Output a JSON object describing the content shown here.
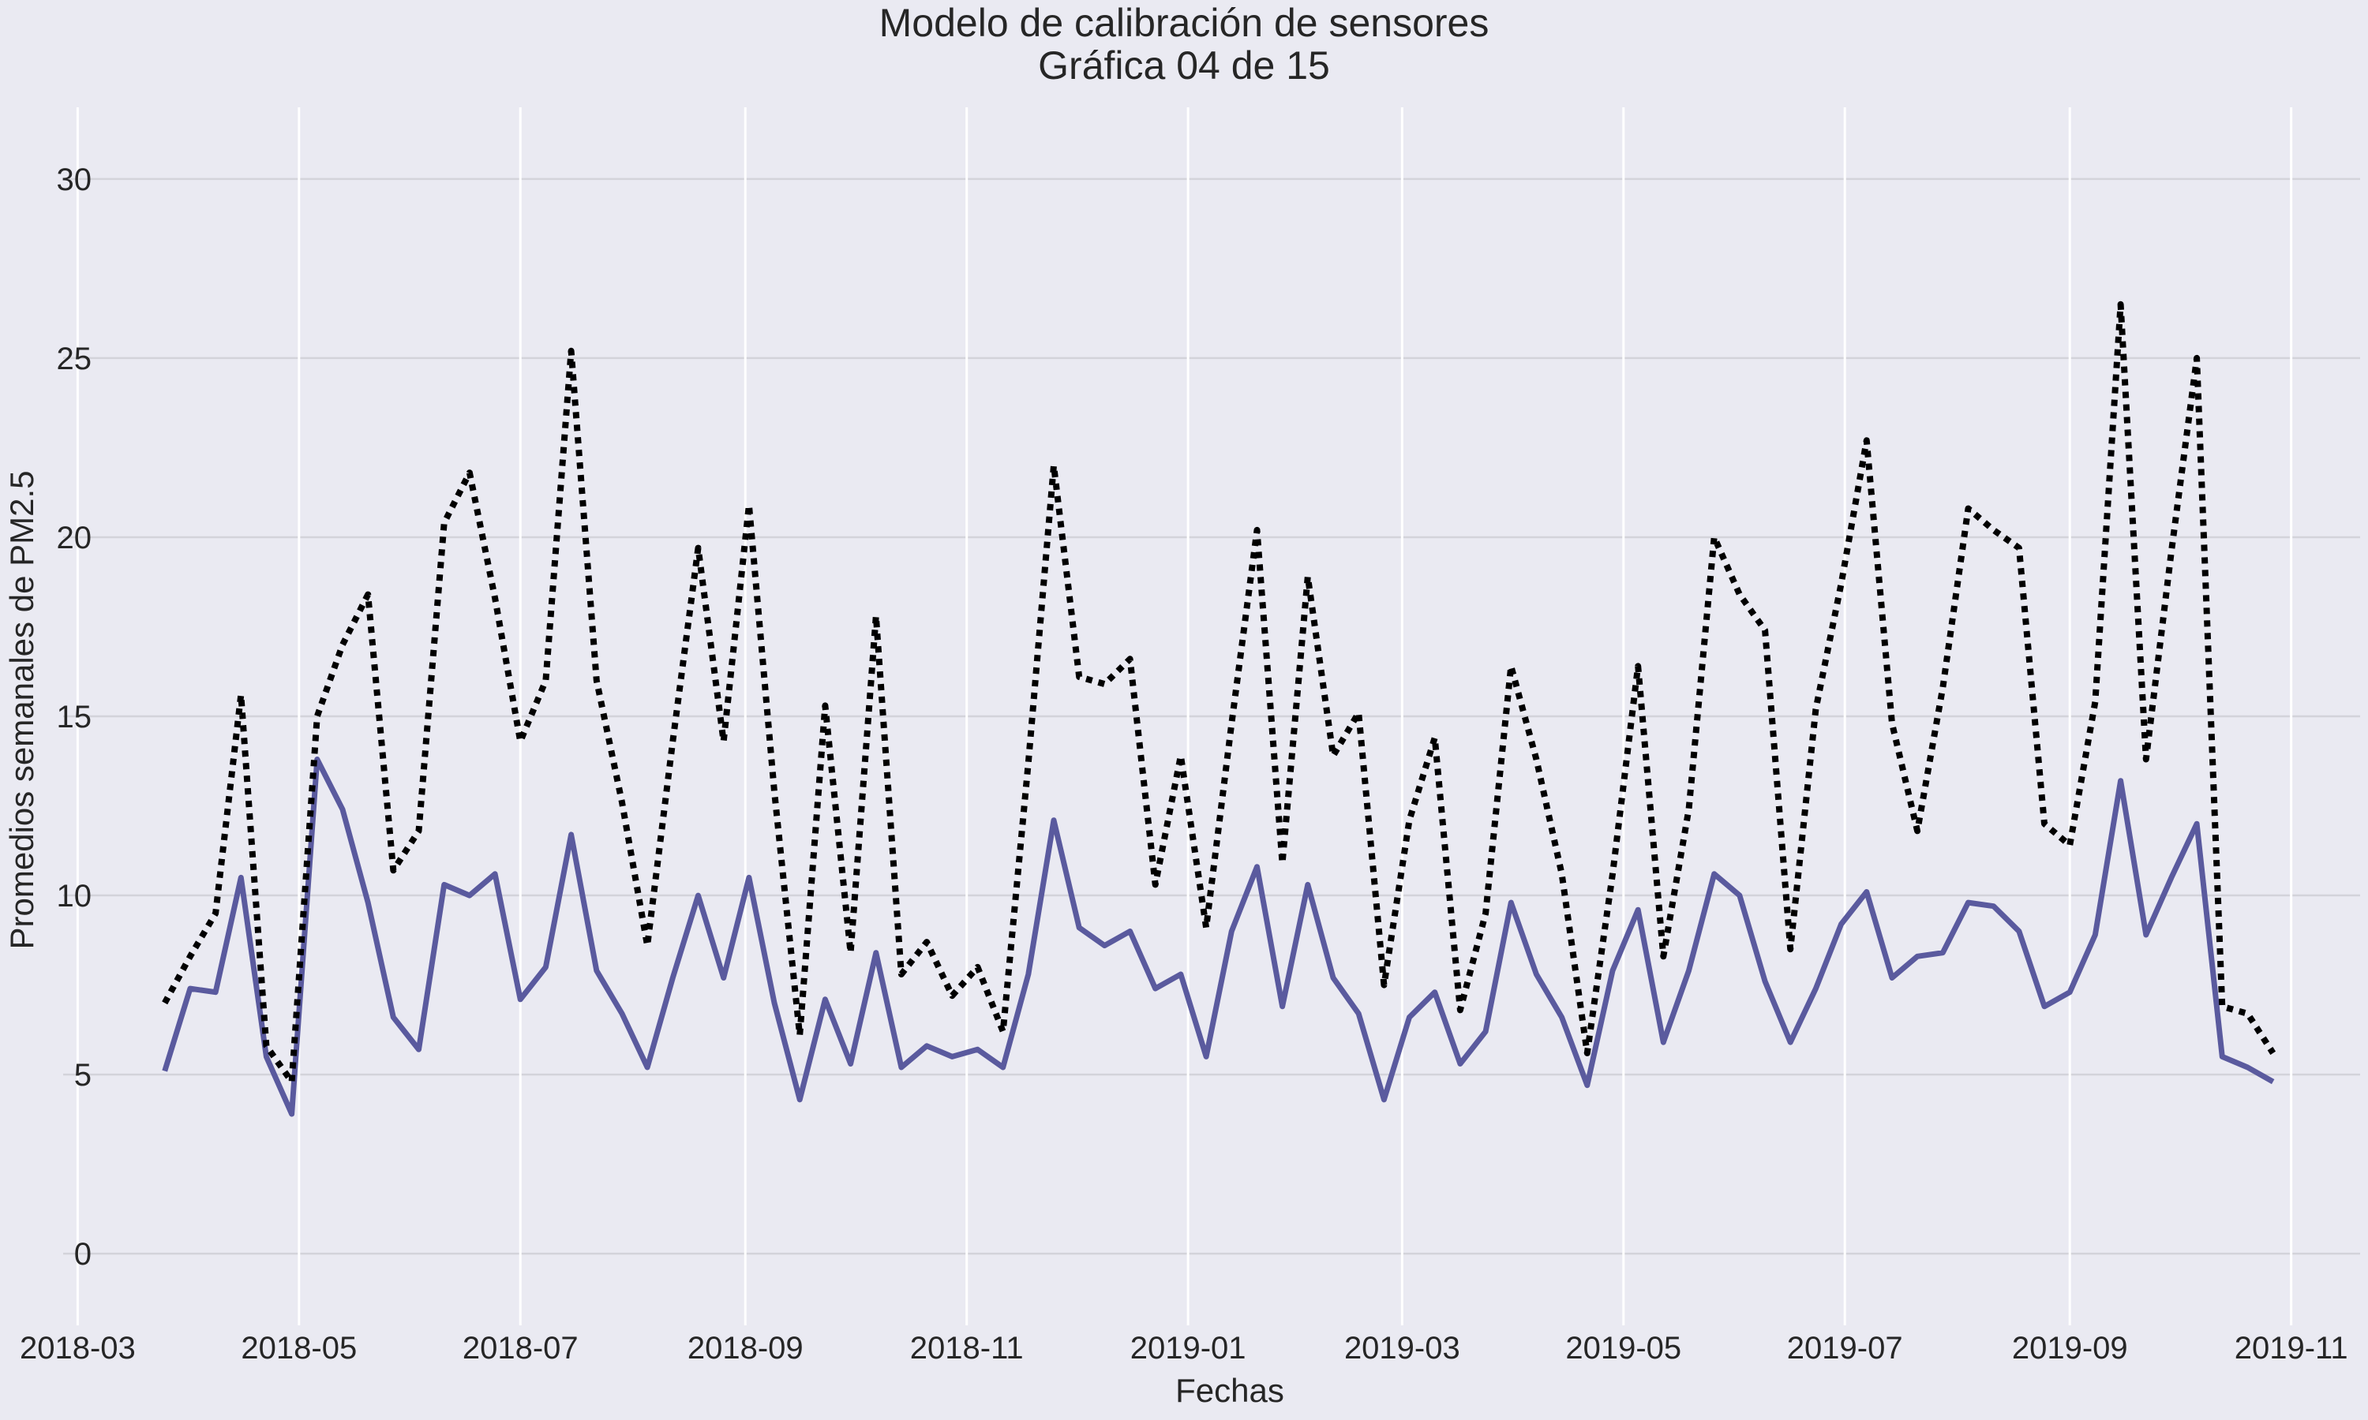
{
  "chart_data": {
    "type": "line",
    "title": "Modelo de calibración de sensores",
    "subtitle": "Gráfica 04 de 15",
    "xlabel": "Fechas",
    "ylabel": "Promedios semanales de PM2.5",
    "ylim": [
      -2,
      32
    ],
    "xlim": [
      "2018-02-25",
      "2019-11-20"
    ],
    "yticks": [
      0,
      5,
      10,
      15,
      20,
      25,
      30
    ],
    "yticklabels": [
      "0",
      "5",
      "10",
      "15",
      "20",
      "25",
      "30"
    ],
    "xticks": [
      "2018-03-01",
      "2018-05-01",
      "2018-07-01",
      "2018-09-01",
      "2018-11-01",
      "2019-01-01",
      "2019-03-01",
      "2019-05-01",
      "2019-07-01",
      "2019-09-01",
      "2019-11-01"
    ],
    "xticklabels": [
      "2018-03",
      "2018-05",
      "2018-07",
      "2018-09",
      "2018-11",
      "2019-01",
      "2019-03",
      "2019-05",
      "2019-07",
      "2019-09",
      "2019-11"
    ],
    "grid": true,
    "background": "#EAEAF2",
    "series": [
      {
        "style": "solid",
        "color": "#5A5A9E",
        "points": [
          [
            "2018-03-25",
            5.1
          ],
          [
            "2018-04-01",
            7.4
          ],
          [
            "2018-04-08",
            7.3
          ],
          [
            "2018-04-15",
            10.5
          ],
          [
            "2018-04-22",
            5.5
          ],
          [
            "2018-04-29",
            3.9
          ],
          [
            "2018-05-06",
            13.8
          ],
          [
            "2018-05-13",
            12.4
          ],
          [
            "2018-05-20",
            9.8
          ],
          [
            "2018-05-27",
            6.6
          ],
          [
            "2018-06-03",
            5.7
          ],
          [
            "2018-06-10",
            10.3
          ],
          [
            "2018-06-17",
            10.0
          ],
          [
            "2018-06-24",
            10.6
          ],
          [
            "2018-07-01",
            7.1
          ],
          [
            "2018-07-08",
            8.0
          ],
          [
            "2018-07-15",
            11.7
          ],
          [
            "2018-07-22",
            7.9
          ],
          [
            "2018-07-29",
            6.7
          ],
          [
            "2018-08-05",
            5.2
          ],
          [
            "2018-08-12",
            7.7
          ],
          [
            "2018-08-19",
            10.0
          ],
          [
            "2018-08-26",
            7.7
          ],
          [
            "2018-09-02",
            10.5
          ],
          [
            "2018-09-09",
            7.0
          ],
          [
            "2018-09-16",
            4.3
          ],
          [
            "2018-09-23",
            7.1
          ],
          [
            "2018-09-30",
            5.3
          ],
          [
            "2018-10-07",
            8.4
          ],
          [
            "2018-10-14",
            5.2
          ],
          [
            "2018-10-21",
            5.8
          ],
          [
            "2018-10-28",
            5.5
          ],
          [
            "2018-11-04",
            5.7
          ],
          [
            "2018-11-11",
            5.2
          ],
          [
            "2018-11-18",
            7.8
          ],
          [
            "2018-11-25",
            12.1
          ],
          [
            "2018-12-02",
            9.1
          ],
          [
            "2018-12-09",
            8.6
          ],
          [
            "2018-12-16",
            9.0
          ],
          [
            "2018-12-23",
            7.4
          ],
          [
            "2018-12-30",
            7.8
          ],
          [
            "2019-01-06",
            5.5
          ],
          [
            "2019-01-13",
            9.0
          ],
          [
            "2019-01-20",
            10.8
          ],
          [
            "2019-01-27",
            6.9
          ],
          [
            "2019-02-03",
            10.3
          ],
          [
            "2019-02-10",
            7.7
          ],
          [
            "2019-02-17",
            6.7
          ],
          [
            "2019-02-24",
            4.3
          ],
          [
            "2019-03-03",
            6.6
          ],
          [
            "2019-03-10",
            7.3
          ],
          [
            "2019-03-17",
            5.3
          ],
          [
            "2019-03-24",
            6.2
          ],
          [
            "2019-03-31",
            9.8
          ],
          [
            "2019-04-07",
            7.8
          ],
          [
            "2019-04-14",
            6.6
          ],
          [
            "2019-04-21",
            4.7
          ],
          [
            "2019-04-28",
            7.9
          ],
          [
            "2019-05-05",
            9.6
          ],
          [
            "2019-05-12",
            5.9
          ],
          [
            "2019-05-19",
            7.9
          ],
          [
            "2019-05-26",
            10.6
          ],
          [
            "2019-06-02",
            10.0
          ],
          [
            "2019-06-09",
            7.6
          ],
          [
            "2019-06-16",
            5.9
          ],
          [
            "2019-06-23",
            7.4
          ],
          [
            "2019-06-30",
            9.2
          ],
          [
            "2019-07-07",
            10.1
          ],
          [
            "2019-07-14",
            7.7
          ],
          [
            "2019-07-21",
            8.3
          ],
          [
            "2019-07-28",
            8.4
          ],
          [
            "2019-08-04",
            9.8
          ],
          [
            "2019-08-11",
            9.7
          ],
          [
            "2019-08-18",
            9.0
          ],
          [
            "2019-08-25",
            6.9
          ],
          [
            "2019-09-01",
            7.3
          ],
          [
            "2019-09-08",
            8.9
          ],
          [
            "2019-09-15",
            13.2
          ],
          [
            "2019-09-22",
            8.9
          ],
          [
            "2019-09-29",
            10.5
          ],
          [
            "2019-10-06",
            12.0
          ],
          [
            "2019-10-13",
            5.5
          ],
          [
            "2019-10-20",
            5.2
          ],
          [
            "2019-10-27",
            4.8
          ]
        ]
      },
      {
        "style": "dotted",
        "color": "#000000",
        "points": [
          [
            "2018-03-25",
            7.0
          ],
          [
            "2018-04-01",
            8.3
          ],
          [
            "2018-04-08",
            9.5
          ],
          [
            "2018-04-15",
            15.6
          ],
          [
            "2018-04-22",
            5.8
          ],
          [
            "2018-04-29",
            4.8
          ],
          [
            "2018-05-06",
            15.0
          ],
          [
            "2018-05-13",
            17.0
          ],
          [
            "2018-05-20",
            18.4
          ],
          [
            "2018-05-27",
            10.7
          ],
          [
            "2018-06-03",
            11.8
          ],
          [
            "2018-06-10",
            20.4
          ],
          [
            "2018-06-17",
            21.8
          ],
          [
            "2018-06-24",
            18.3
          ],
          [
            "2018-07-01",
            14.3
          ],
          [
            "2018-07-08",
            16.0
          ],
          [
            "2018-07-15",
            25.2
          ],
          [
            "2018-07-22",
            16.0
          ],
          [
            "2018-07-29",
            12.6
          ],
          [
            "2018-08-05",
            8.6
          ],
          [
            "2018-08-12",
            14.3
          ],
          [
            "2018-08-19",
            19.7
          ],
          [
            "2018-08-26",
            14.3
          ],
          [
            "2018-09-02",
            20.9
          ],
          [
            "2018-09-09",
            12.9
          ],
          [
            "2018-09-16",
            6.1
          ],
          [
            "2018-09-23",
            15.3
          ],
          [
            "2018-09-30",
            8.4
          ],
          [
            "2018-10-07",
            17.8
          ],
          [
            "2018-10-14",
            7.8
          ],
          [
            "2018-10-21",
            8.7
          ],
          [
            "2018-10-28",
            7.2
          ],
          [
            "2018-11-04",
            8.0
          ],
          [
            "2018-11-11",
            6.2
          ],
          [
            "2018-11-18",
            13.7
          ],
          [
            "2018-11-25",
            22.0
          ],
          [
            "2018-12-02",
            16.1
          ],
          [
            "2018-12-09",
            15.9
          ],
          [
            "2018-12-16",
            16.6
          ],
          [
            "2018-12-23",
            10.3
          ],
          [
            "2018-12-30",
            13.9
          ],
          [
            "2019-01-06",
            9.1
          ],
          [
            "2019-01-13",
            14.8
          ],
          [
            "2019-01-20",
            20.2
          ],
          [
            "2019-01-27",
            10.9
          ],
          [
            "2019-02-03",
            18.9
          ],
          [
            "2019-02-10",
            13.9
          ],
          [
            "2019-02-17",
            15.1
          ],
          [
            "2019-02-24",
            7.5
          ],
          [
            "2019-03-03",
            12.1
          ],
          [
            "2019-03-10",
            14.4
          ],
          [
            "2019-03-17",
            6.8
          ],
          [
            "2019-03-24",
            9.5
          ],
          [
            "2019-03-31",
            16.4
          ],
          [
            "2019-04-07",
            13.8
          ],
          [
            "2019-04-14",
            10.6
          ],
          [
            "2019-04-21",
            5.6
          ],
          [
            "2019-04-28",
            10.6
          ],
          [
            "2019-05-05",
            16.4
          ],
          [
            "2019-05-12",
            8.3
          ],
          [
            "2019-05-19",
            12.4
          ],
          [
            "2019-05-26",
            20.0
          ],
          [
            "2019-06-02",
            18.4
          ],
          [
            "2019-06-09",
            17.4
          ],
          [
            "2019-06-16",
            8.5
          ],
          [
            "2019-06-23",
            15.2
          ],
          [
            "2019-06-30",
            18.7
          ],
          [
            "2019-07-07",
            22.7
          ],
          [
            "2019-07-14",
            14.8
          ],
          [
            "2019-07-21",
            11.8
          ],
          [
            "2019-07-28",
            15.8
          ],
          [
            "2019-08-04",
            20.8
          ],
          [
            "2019-08-11",
            20.2
          ],
          [
            "2019-08-18",
            19.7
          ],
          [
            "2019-08-25",
            12.0
          ],
          [
            "2019-09-01",
            11.4
          ],
          [
            "2019-09-08",
            15.4
          ],
          [
            "2019-09-15",
            26.5
          ],
          [
            "2019-09-22",
            13.8
          ],
          [
            "2019-09-29",
            19.6
          ],
          [
            "2019-10-06",
            25.0
          ],
          [
            "2019-10-13",
            6.9
          ],
          [
            "2019-10-20",
            6.7
          ],
          [
            "2019-10-27",
            5.6
          ]
        ]
      }
    ]
  }
}
